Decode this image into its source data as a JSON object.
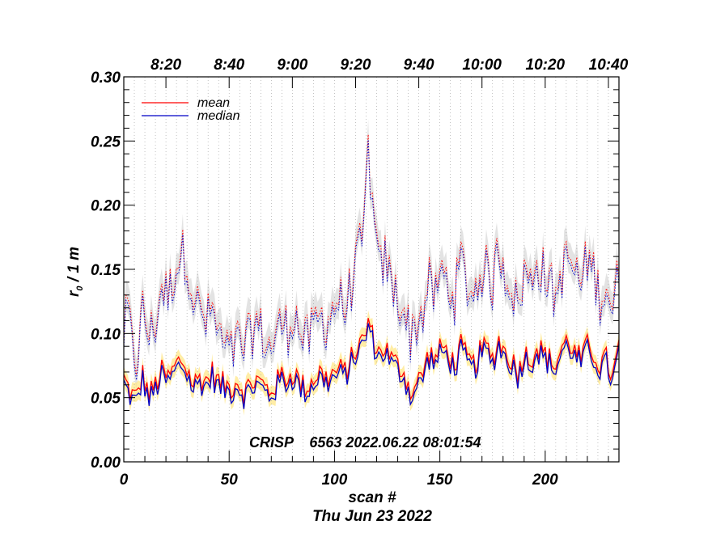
{
  "chart_data": {
    "type": "line",
    "title": "",
    "xlabel": "scan #",
    "ylabel_main": "r",
    "ylabel_subscript": "0",
    "ylabel_suffix": " / 1 m",
    "date_label": "Thu Jun 23 2022",
    "annotation": "CRISP    6563 2022.06.22 08:01:54",
    "xlim": [
      0,
      235
    ],
    "ylim": [
      0,
      0.3
    ],
    "x_ticks": [
      0,
      50,
      100,
      150,
      200
    ],
    "x_tick_labels": [
      "0",
      "50",
      "100",
      "150",
      "200"
    ],
    "y_ticks": [
      0.0,
      0.05,
      0.1,
      0.15,
      0.2,
      0.25,
      0.3
    ],
    "y_tick_labels": [
      "0.00",
      "0.05",
      "0.10",
      "0.15",
      "0.20",
      "0.25",
      "0.30"
    ],
    "top_axis_positions": [
      20,
      50,
      80,
      110,
      140,
      170,
      200,
      230
    ],
    "top_axis_labels": [
      "8:20",
      "8:40",
      "9:00",
      "9:20",
      "9:40",
      "10:00",
      "10:20",
      "10:40"
    ],
    "legend": [
      {
        "name": "mean",
        "color": "#ff0000"
      },
      {
        "name": "median",
        "color": "#0000c8"
      }
    ],
    "legend_position": "top-left",
    "colors": {
      "mean": "#ff0000",
      "median": "#0000c8",
      "spread_high": "#d9d9d9",
      "spread_low": "#ffe680",
      "grid": "#9a9a9a"
    },
    "anchors": {
      "x": [
        0,
        2,
        4,
        6,
        9,
        12,
        15,
        18,
        21,
        24,
        27,
        30,
        33,
        36,
        39,
        42,
        45,
        48,
        51,
        54,
        57,
        60,
        63,
        66,
        69,
        72,
        75,
        78,
        81,
        84,
        87,
        90,
        93,
        96,
        99,
        102,
        105,
        108,
        111,
        114,
        116,
        118,
        121,
        124,
        127,
        130,
        133,
        136,
        139,
        142,
        145,
        148,
        151,
        154,
        157,
        160,
        163,
        166,
        169,
        172,
        175,
        178,
        181,
        184,
        187,
        190,
        193,
        196,
        199,
        202,
        205,
        208,
        211,
        214,
        217,
        220,
        223,
        226,
        229,
        232,
        235
      ],
      "mean_low": [
        0.065,
        0.058,
        0.052,
        0.05,
        0.068,
        0.052,
        0.06,
        0.07,
        0.065,
        0.073,
        0.08,
        0.072,
        0.06,
        0.066,
        0.063,
        0.07,
        0.062,
        0.06,
        0.058,
        0.064,
        0.055,
        0.06,
        0.064,
        0.06,
        0.055,
        0.06,
        0.068,
        0.065,
        0.07,
        0.06,
        0.058,
        0.065,
        0.07,
        0.065,
        0.068,
        0.072,
        0.07,
        0.08,
        0.09,
        0.095,
        0.11,
        0.098,
        0.085,
        0.09,
        0.08,
        0.075,
        0.07,
        0.055,
        0.06,
        0.07,
        0.085,
        0.08,
        0.09,
        0.085,
        0.075,
        0.09,
        0.08,
        0.075,
        0.085,
        0.09,
        0.08,
        0.095,
        0.085,
        0.08,
        0.07,
        0.085,
        0.08,
        0.09,
        0.085,
        0.08,
        0.075,
        0.09,
        0.095,
        0.085,
        0.08,
        0.09,
        0.085,
        0.075,
        0.08,
        0.065,
        0.09
      ],
      "median_low": [
        0.063,
        0.056,
        0.05,
        0.048,
        0.066,
        0.05,
        0.058,
        0.068,
        0.063,
        0.071,
        0.078,
        0.07,
        0.058,
        0.064,
        0.061,
        0.068,
        0.06,
        0.058,
        0.056,
        0.062,
        0.053,
        0.058,
        0.062,
        0.058,
        0.053,
        0.058,
        0.066,
        0.063,
        0.068,
        0.058,
        0.056,
        0.063,
        0.068,
        0.063,
        0.066,
        0.07,
        0.068,
        0.078,
        0.088,
        0.093,
        0.108,
        0.096,
        0.083,
        0.088,
        0.078,
        0.073,
        0.068,
        0.053,
        0.058,
        0.068,
        0.083,
        0.078,
        0.088,
        0.083,
        0.073,
        0.088,
        0.078,
        0.073,
        0.083,
        0.088,
        0.078,
        0.093,
        0.083,
        0.078,
        0.068,
        0.083,
        0.078,
        0.088,
        0.083,
        0.078,
        0.073,
        0.088,
        0.093,
        0.083,
        0.078,
        0.088,
        0.083,
        0.073,
        0.078,
        0.063,
        0.088
      ],
      "mean_high": [
        0.1,
        0.12,
        0.09,
        0.08,
        0.12,
        0.1,
        0.11,
        0.14,
        0.13,
        0.15,
        0.165,
        0.16,
        0.13,
        0.12,
        0.11,
        0.12,
        0.1,
        0.09,
        0.085,
        0.095,
        0.09,
        0.1,
        0.11,
        0.1,
        0.09,
        0.1,
        0.11,
        0.105,
        0.12,
        0.1,
        0.095,
        0.105,
        0.115,
        0.11,
        0.12,
        0.13,
        0.12,
        0.14,
        0.16,
        0.18,
        0.25,
        0.2,
        0.15,
        0.16,
        0.14,
        0.13,
        0.12,
        0.1,
        0.11,
        0.12,
        0.14,
        0.13,
        0.15,
        0.14,
        0.13,
        0.16,
        0.14,
        0.13,
        0.15,
        0.15,
        0.14,
        0.17,
        0.15,
        0.14,
        0.12,
        0.15,
        0.14,
        0.16,
        0.15,
        0.14,
        0.13,
        0.15,
        0.16,
        0.15,
        0.14,
        0.16,
        0.15,
        0.13,
        0.14,
        0.12,
        0.15
      ],
      "median_high": [
        0.098,
        0.118,
        0.088,
        0.078,
        0.118,
        0.098,
        0.108,
        0.138,
        0.128,
        0.148,
        0.163,
        0.158,
        0.128,
        0.118,
        0.108,
        0.118,
        0.098,
        0.088,
        0.083,
        0.093,
        0.088,
        0.098,
        0.108,
        0.098,
        0.088,
        0.098,
        0.108,
        0.103,
        0.118,
        0.098,
        0.093,
        0.103,
        0.113,
        0.108,
        0.118,
        0.128,
        0.118,
        0.138,
        0.158,
        0.178,
        0.248,
        0.198,
        0.148,
        0.158,
        0.138,
        0.128,
        0.118,
        0.098,
        0.108,
        0.118,
        0.138,
        0.128,
        0.148,
        0.138,
        0.128,
        0.158,
        0.138,
        0.128,
        0.148,
        0.148,
        0.138,
        0.168,
        0.148,
        0.138,
        0.118,
        0.148,
        0.138,
        0.158,
        0.148,
        0.138,
        0.128,
        0.148,
        0.158,
        0.148,
        0.138,
        0.158,
        0.148,
        0.128,
        0.138,
        0.118,
        0.148
      ]
    }
  }
}
